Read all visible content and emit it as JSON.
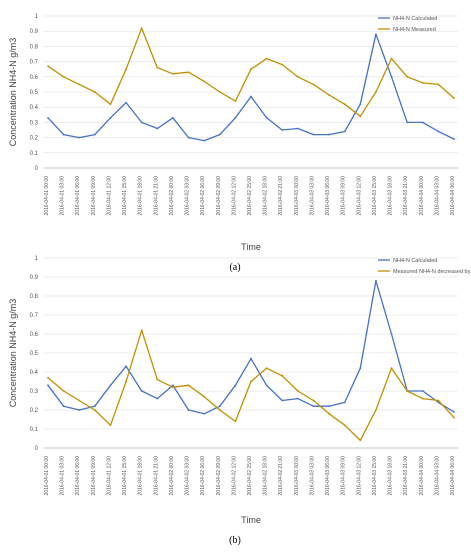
{
  "colors": {
    "calculated": "#4472C4",
    "measured": "#BF9000",
    "grid": "#d9d9d9",
    "axis": "#bfbfbf"
  },
  "chart_data": [
    {
      "type": "line",
      "panel_label": "(a)",
      "xlabel": "Time",
      "ylabel": "Concentration NH4-N g/m3",
      "ylim": [
        0,
        1
      ],
      "yticks": [
        "0",
        "0.1",
        "0.2",
        "0.3",
        "0.4",
        "0.5",
        "0.6",
        "0.7",
        "0.8",
        "0.9",
        "1"
      ],
      "x": [
        "2016-04-01 00:00",
        "2016-04-01 03:00",
        "2016-04-01 06:00",
        "2016-04-01 09:00",
        "2016-04-01 12:00",
        "2016-04-01 15:00",
        "2016-04-01 18:00",
        "2016-04-01 21:00",
        "2016-04-02 00:00",
        "2016-04-02 03:00",
        "2016-04-02 06:00",
        "2016-04-02 09:00",
        "2016-04-02 12:00",
        "2016-04-02 15:00",
        "2016-04-02 18:00",
        "2016-04-02 21:00",
        "2016-04-03 00:00",
        "2016-04-03 03:00",
        "2016-04-03 06:00",
        "2016-04-03 09:00",
        "2016-04-03 12:00",
        "2016-04-03 15:00",
        "2016-04-03 18:00",
        "2016-04-03 21:00",
        "2016-04-04 00:00",
        "2016-04-04 03:00",
        "2016-04-04 06:00"
      ],
      "legend": "top-right",
      "series": [
        {
          "name": "NH4-N Calculated",
          "values": [
            0.33,
            0.22,
            0.2,
            0.22,
            0.33,
            0.43,
            0.3,
            0.26,
            0.33,
            0.2,
            0.18,
            0.22,
            0.33,
            0.47,
            0.33,
            0.25,
            0.26,
            0.22,
            0.22,
            0.24,
            0.42,
            0.88,
            0.6,
            0.3,
            0.3,
            0.24,
            0.19
          ]
        },
        {
          "name": "NH4-N Measured",
          "values": [
            0.67,
            0.6,
            0.55,
            0.5,
            0.42,
            0.65,
            0.92,
            0.66,
            0.62,
            0.63,
            0.57,
            0.5,
            0.44,
            0.65,
            0.72,
            0.68,
            0.6,
            0.55,
            0.48,
            0.42,
            0.34,
            0.5,
            0.72,
            0.6,
            0.56,
            0.55,
            0.46
          ]
        }
      ]
    },
    {
      "type": "line",
      "panel_label": "(b)",
      "xlabel": "Time",
      "ylabel": "Concentration NH4-N g/m3",
      "ylim": [
        0,
        1
      ],
      "yticks": [
        "0",
        "0.1",
        "0.2",
        "0.3",
        "0.4",
        "0.5",
        "0.6",
        "0.7",
        "0.8",
        "0.9",
        "1"
      ],
      "x": [
        "2016-04-01 00:00",
        "2016-04-01 03:00",
        "2016-04-01 06:00",
        "2016-04-01 09:00",
        "2016-04-01 12:00",
        "2016-04-01 15:00",
        "2016-04-01 18:00",
        "2016-04-01 21:00",
        "2016-04-02 00:00",
        "2016-04-02 03:00",
        "2016-04-02 06:00",
        "2016-04-02 09:00",
        "2016-04-02 12:00",
        "2016-04-02 15:00",
        "2016-04-02 18:00",
        "2016-04-02 21:00",
        "2016-04-03 00:00",
        "2016-04-03 03:00",
        "2016-04-03 06:00",
        "2016-04-03 09:00",
        "2016-04-03 12:00",
        "2016-04-03 15:00",
        "2016-04-03 18:00",
        "2016-04-03 21:00",
        "2016-04-04 00:00",
        "2016-04-04 03:00",
        "2016-04-04 06:00"
      ],
      "legend": "top-right",
      "series": [
        {
          "name": "NH4-N Calculated",
          "values": [
            0.33,
            0.22,
            0.2,
            0.22,
            0.33,
            0.43,
            0.3,
            0.26,
            0.33,
            0.2,
            0.18,
            0.22,
            0.33,
            0.47,
            0.33,
            0.25,
            0.26,
            0.22,
            0.22,
            0.24,
            0.42,
            0.88,
            0.6,
            0.3,
            0.3,
            0.24,
            0.19
          ]
        },
        {
          "name": "Measured NH4-N decreased by 0,3mg/l",
          "values": [
            0.37,
            0.3,
            0.25,
            0.2,
            0.12,
            0.35,
            0.62,
            0.36,
            0.32,
            0.33,
            0.27,
            0.2,
            0.14,
            0.35,
            0.42,
            0.38,
            0.3,
            0.25,
            0.18,
            0.12,
            0.04,
            0.2,
            0.42,
            0.3,
            0.26,
            0.25,
            0.16
          ]
        }
      ]
    }
  ]
}
